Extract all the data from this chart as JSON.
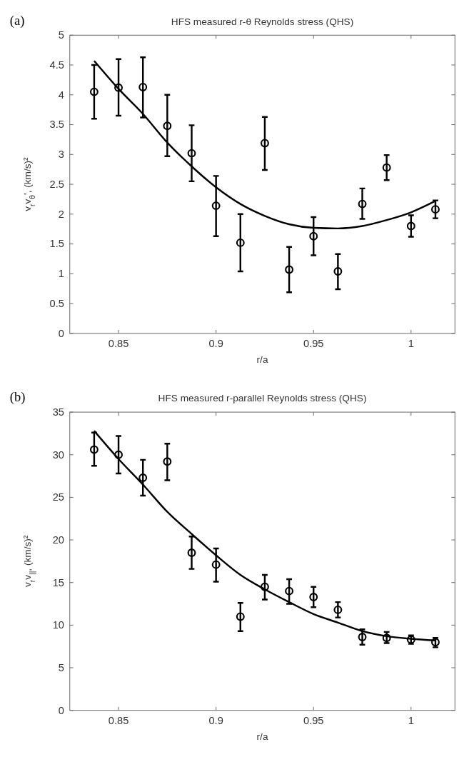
{
  "chart_data": [
    {
      "type": "scatter",
      "title": "HFS measured r-θ Reynolds stress (QHS)",
      "xlabel": "r/a",
      "ylabel": "v$_{r}$v$_{θ}$', (km/s)²",
      "annotations": [
        "(a)"
      ],
      "x": [
        0.8375,
        0.85,
        0.8625,
        0.875,
        0.8875,
        0.9,
        0.9125,
        0.925,
        0.9375,
        0.95,
        0.9625,
        0.975,
        0.9875,
        1.0,
        1.0125
      ],
      "xlim": [
        0.825,
        1.0225
      ],
      "xticks": [
        0.85,
        0.9,
        0.95,
        1
      ],
      "ylim": [
        0,
        5
      ],
      "yticks": [
        0,
        0.5,
        1,
        1.5,
        2,
        2.5,
        3,
        3.5,
        4,
        4.5,
        5
      ],
      "grid": false,
      "series": [
        {
          "color": "#000000",
          "marker": "circle",
          "values": [
            4.05,
            4.12,
            4.13,
            3.48,
            3.02,
            2.14,
            1.52,
            3.19,
            1.07,
            1.63,
            1.04,
            2.17,
            2.78,
            1.8,
            2.08
          ],
          "errors": [
            [
              3.6,
              4.5
            ],
            [
              3.65,
              4.6
            ],
            [
              3.62,
              4.63
            ],
            [
              2.97,
              4.0
            ],
            [
              2.55,
              3.49
            ],
            [
              1.63,
              2.64
            ],
            [
              1.04,
              2.0
            ],
            [
              2.74,
              3.63
            ],
            [
              0.69,
              1.45
            ],
            [
              1.31,
              1.95
            ],
            [
              0.74,
              1.33
            ],
            [
              1.92,
              2.43
            ],
            [
              2.57,
              2.99
            ],
            [
              1.62,
              1.98
            ],
            [
              1.93,
              2.23
            ]
          ]
        },
        {
          "type": "line",
          "color": "#000000",
          "line_style": "solid",
          "x": [
            0.8375,
            0.85,
            0.8625,
            0.875,
            0.8875,
            0.9,
            0.9125,
            0.925,
            0.9375,
            0.95,
            0.9625,
            0.975,
            0.9875,
            1.0,
            1.0125
          ],
          "values": [
            4.57,
            4.1,
            3.68,
            3.2,
            2.8,
            2.45,
            2.17,
            1.97,
            1.83,
            1.77,
            1.76,
            1.8,
            1.9,
            2.03,
            2.22
          ]
        }
      ]
    },
    {
      "type": "scatter",
      "title": "HFS measured r-parallel Reynolds stress (QHS)",
      "xlabel": "r/a",
      "ylabel": "v$_{r}$v$_{||}$, (km/s)²",
      "annotations": [
        "(b)"
      ],
      "x": [
        0.8375,
        0.85,
        0.8625,
        0.875,
        0.8875,
        0.9,
        0.9125,
        0.925,
        0.9375,
        0.95,
        0.9625,
        0.975,
        0.9875,
        1.0,
        1.0125
      ],
      "xlim": [
        0.825,
        1.0225
      ],
      "xticks": [
        0.85,
        0.9,
        0.95,
        1
      ],
      "ylim": [
        0,
        35
      ],
      "yticks": [
        0,
        5,
        10,
        15,
        20,
        25,
        30,
        35
      ],
      "grid": false,
      "series": [
        {
          "color": "#000000",
          "marker": "circle",
          "values": [
            30.6,
            30.0,
            27.3,
            29.2,
            18.5,
            17.1,
            11.0,
            14.5,
            14.0,
            13.3,
            11.8,
            8.6,
            8.5,
            8.3,
            8.0
          ],
          "errors": [
            [
              28.7,
              32.6
            ],
            [
              27.8,
              32.2
            ],
            [
              25.2,
              29.4
            ],
            [
              27.0,
              31.3
            ],
            [
              16.6,
              20.4
            ],
            [
              15.1,
              19.0
            ],
            [
              9.3,
              12.6
            ],
            [
              13.0,
              15.9
            ],
            [
              12.5,
              15.4
            ],
            [
              12.1,
              14.5
            ],
            [
              10.9,
              12.7
            ],
            [
              7.7,
              9.5
            ],
            [
              7.9,
              9.2
            ],
            [
              7.8,
              8.8
            ],
            [
              7.4,
              8.5
            ]
          ]
        },
        {
          "type": "line",
          "color": "#000000",
          "line_style": "solid",
          "x": [
            0.8375,
            0.85,
            0.8625,
            0.875,
            0.8875,
            0.9,
            0.9125,
            0.925,
            0.9375,
            0.95,
            0.9625,
            0.975,
            0.9875,
            1.0,
            1.0125
          ],
          "values": [
            32.8,
            29.5,
            26.5,
            23.3,
            20.7,
            18.2,
            15.9,
            14.2,
            12.7,
            11.3,
            10.3,
            9.3,
            8.7,
            8.4,
            8.2
          ]
        }
      ]
    }
  ]
}
